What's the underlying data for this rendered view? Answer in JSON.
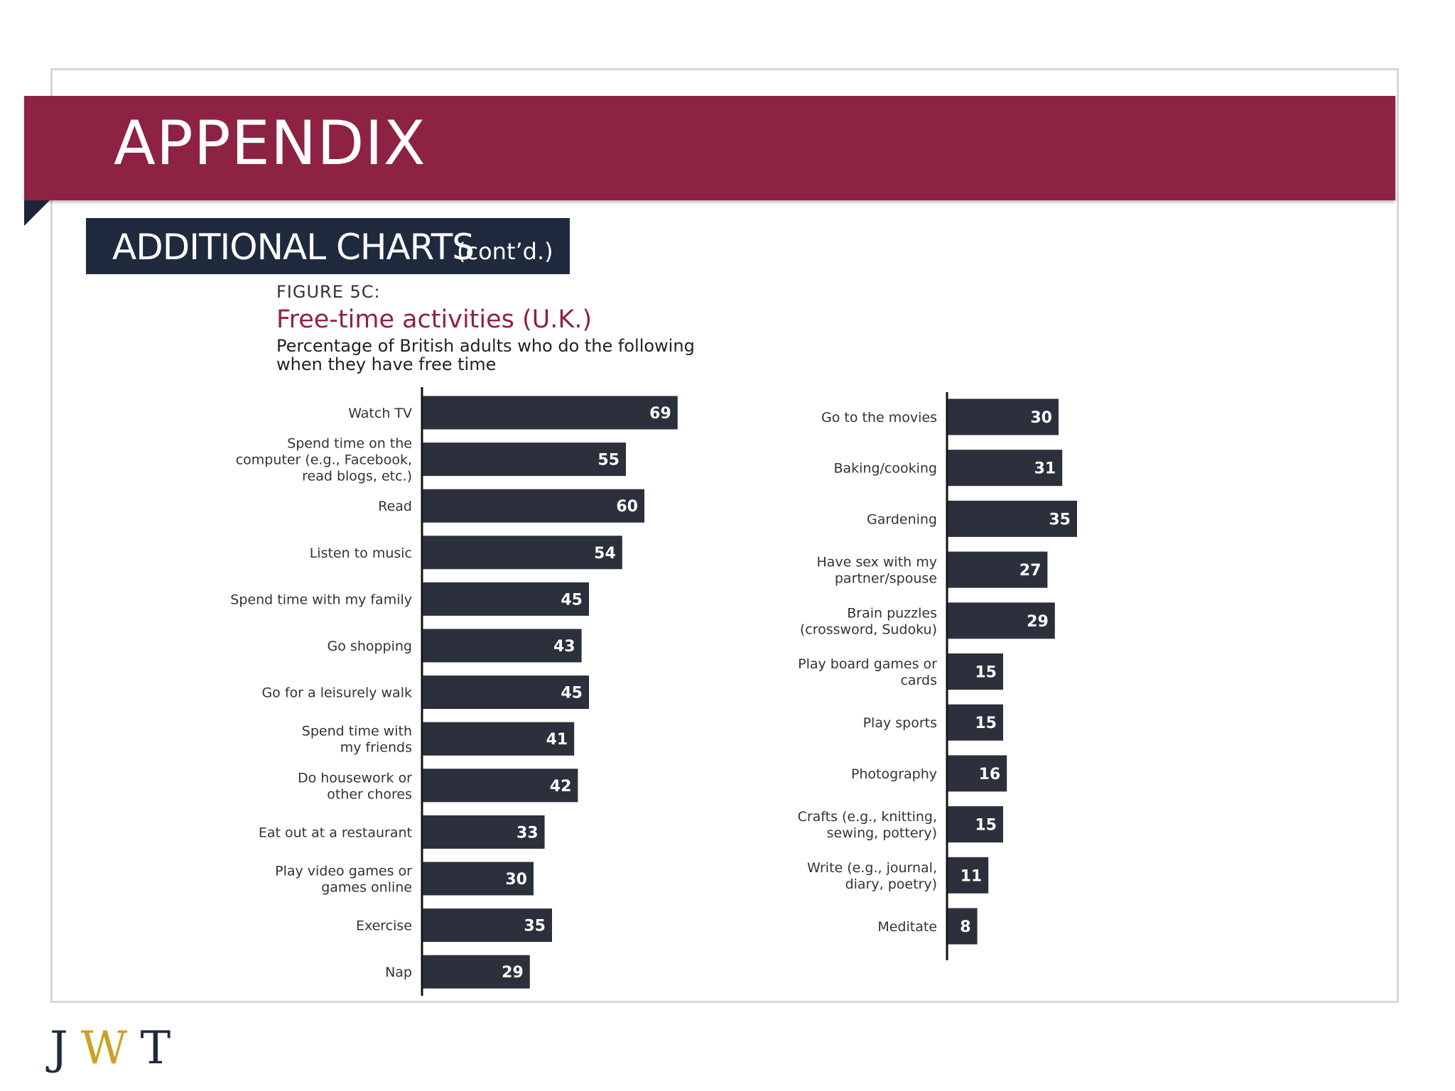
{
  "header": {
    "banner_title": "APPENDIX",
    "section_title": "ADDITIONAL CHARTS",
    "section_suffix": "(cont’d.)"
  },
  "figure": {
    "label": "FIGURE 5C:",
    "title": "Free-time activities (U.K.)",
    "subtitle": "Percentage of British adults who do the following when they have free time"
  },
  "colors": {
    "banner": "#8e2243",
    "subbar": "#1f2a3e",
    "bar": "#2c2f3c",
    "title_accent": "#8e2243",
    "logo_gold": "#c9a227"
  },
  "logo": {
    "letters": [
      "J",
      "W",
      "T"
    ]
  },
  "chart_data": [
    {
      "type": "bar",
      "orientation": "horizontal",
      "title": "Free-time activities (U.K.)",
      "ylim": [
        0,
        100
      ],
      "categories": [
        [
          "Watch TV"
        ],
        [
          "Spend time on the",
          "computer (e.g., Facebook,",
          "read blogs, etc.)"
        ],
        [
          "Read"
        ],
        [
          "Listen to music"
        ],
        [
          "Spend time with my family"
        ],
        [
          "Go shopping"
        ],
        [
          "Go for a leisurely walk"
        ],
        [
          "Spend time with",
          "my friends"
        ],
        [
          "Do housework or",
          "other chores"
        ],
        [
          "Eat out at a restaurant"
        ],
        [
          "Play video games or",
          "games online"
        ],
        [
          "Exercise"
        ],
        [
          "Nap"
        ]
      ],
      "values": [
        69,
        55,
        60,
        54,
        45,
        43,
        45,
        41,
        42,
        33,
        30,
        35,
        29
      ]
    },
    {
      "type": "bar",
      "orientation": "horizontal",
      "ylim": [
        0,
        100
      ],
      "categories": [
        [
          "Go to the movies"
        ],
        [
          "Baking/cooking"
        ],
        [
          "Gardening"
        ],
        [
          "Have sex with my",
          "partner/spouse"
        ],
        [
          "Brain puzzles",
          "(crossword, Sudoku)"
        ],
        [
          "Play board games or",
          "cards"
        ],
        [
          "Play sports"
        ],
        [
          "Photography"
        ],
        [
          "Crafts (e.g., knitting,",
          "sewing, pottery)"
        ],
        [
          "Write (e.g., journal,",
          "diary, poetry)"
        ],
        [
          "Meditate"
        ]
      ],
      "values": [
        30,
        31,
        35,
        27,
        29,
        15,
        15,
        16,
        15,
        11,
        8
      ]
    }
  ]
}
